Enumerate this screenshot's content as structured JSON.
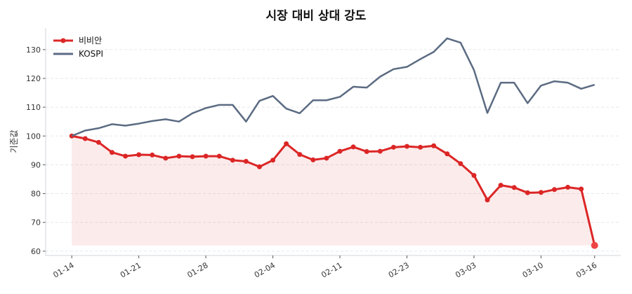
{
  "chart_data": {
    "type": "line",
    "title": "시장 대비 상대 강도",
    "xlabel": "",
    "ylabel": "기준값",
    "ylim": [
      58.5,
      137.5
    ],
    "yticks": [
      60,
      70,
      80,
      90,
      100,
      110,
      120,
      130
    ],
    "grid": "y-dashed",
    "legend_position": "top-left",
    "x": [
      "01-14",
      "01-15",
      "01-16",
      "01-19",
      "01-20",
      "01-21",
      "01-22",
      "01-23",
      "01-26",
      "01-27",
      "01-28",
      "01-29",
      "01-30",
      "02-02",
      "02-03",
      "02-04",
      "02-05",
      "02-06",
      "02-09",
      "02-10",
      "02-11",
      "02-12",
      "02-13",
      "02-19",
      "02-20",
      "02-23",
      "02-24",
      "02-25",
      "02-26",
      "02-27",
      "03-03",
      "03-04",
      "03-05",
      "03-06",
      "03-09",
      "03-10",
      "03-11",
      "03-12",
      "03-13",
      "03-16"
    ],
    "xtick_labels": [
      "01-14",
      "01-21",
      "01-28",
      "02-04",
      "02-11",
      "02-23",
      "03-03",
      "03-10",
      "03-16"
    ],
    "series": [
      {
        "name": "비비안",
        "color": "#dc2626",
        "fill": true,
        "markers": true,
        "values": [
          100,
          99.1,
          97.8,
          94.3,
          93.0,
          93.5,
          93.4,
          92.3,
          93.0,
          92.8,
          93.0,
          93.0,
          91.6,
          91.2,
          89.3,
          91.6,
          97.3,
          93.6,
          91.7,
          92.3,
          94.7,
          96.2,
          94.6,
          94.7,
          96.1,
          96.4,
          96.1,
          96.6,
          93.8,
          90.4,
          86.3,
          77.8,
          82.9,
          82.1,
          80.3,
          80.4,
          81.4,
          82.2,
          81.6,
          62.0
        ]
      },
      {
        "name": "KOSPI",
        "color": "#5b6b82",
        "fill": false,
        "markers": false,
        "values": [
          100,
          101.9,
          102.7,
          104.1,
          103.6,
          104.3,
          105.2,
          105.8,
          105.0,
          107.9,
          109.7,
          110.8,
          110.8,
          105.0,
          112.2,
          113.9,
          109.5,
          107.9,
          112.4,
          112.4,
          113.6,
          117.1,
          116.8,
          120.6,
          123.2,
          124.0,
          126.7,
          129.2,
          133.9,
          132.4,
          122.9,
          108.0,
          118.5,
          118.5,
          111.4,
          117.5,
          119.0,
          118.5,
          116.4,
          117.8
        ]
      }
    ]
  }
}
